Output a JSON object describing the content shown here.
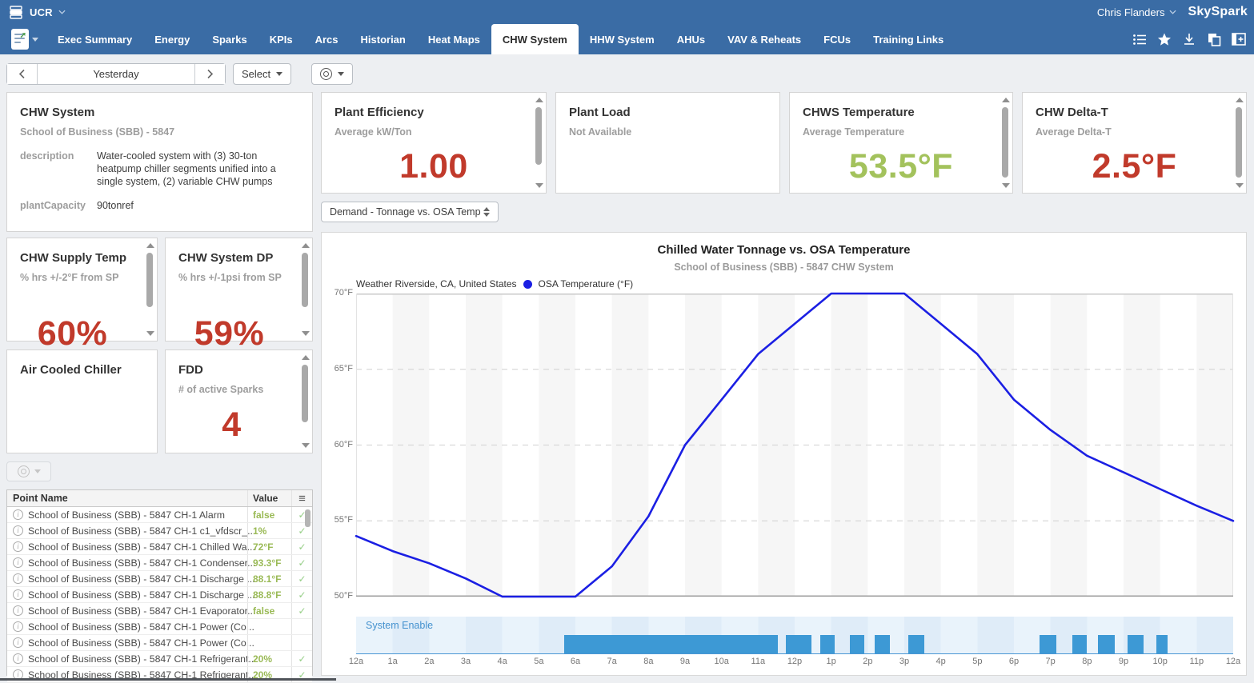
{
  "header": {
    "project": "UCR",
    "user": "Chris Flanders",
    "brand": "SkySpark"
  },
  "tabs": {
    "items": [
      "Exec Summary",
      "Energy",
      "Sparks",
      "KPIs",
      "Arcs",
      "Historian",
      "Heat Maps",
      "CHW System",
      "HHW System",
      "AHUs",
      "VAV & Reheats",
      "FCUs",
      "Training Links"
    ],
    "active": "CHW System"
  },
  "tabbar_icons": [
    "view-list-icon",
    "favorite-star-icon",
    "download-icon",
    "copy-icon",
    "new-window-icon"
  ],
  "toolbar": {
    "date_label": "Yesterday",
    "select_label": "Select"
  },
  "cards": {
    "chw_system": {
      "title": "CHW System",
      "subtitle": "School of Business (SBB) - 5847",
      "fields": [
        {
          "label": "description",
          "value": "Water-cooled system with (3) 30-ton heatpump chiller segments unified into a single system, (2) variable CHW pumps"
        },
        {
          "label": "plantCapacity",
          "value": "90tonref"
        }
      ]
    },
    "plant_efficiency": {
      "title": "Plant Efficiency",
      "subtitle": "Average kW/Ton",
      "value": "1.00"
    },
    "plant_load": {
      "title": "Plant Load",
      "subtitle": "Not Available"
    },
    "chws_temperature": {
      "title": "CHWS Temperature",
      "subtitle": "Average Temperature",
      "value": "53.5°F"
    },
    "chw_delta_t": {
      "title": "CHW Delta-T",
      "subtitle": "Average Delta-T",
      "value": "2.5°F"
    },
    "chw_supply_temp": {
      "title": "CHW Supply Temp",
      "subtitle": "% hrs +/-2°F from SP",
      "value": "60%"
    },
    "chw_system_dp": {
      "title": "CHW System DP",
      "subtitle": "% hrs +/-1psi from SP",
      "value": "59%"
    },
    "air_cooled_chiller": {
      "title": "Air Cooled Chiller"
    },
    "fdd": {
      "title": "FDD",
      "subtitle": "# of active Sparks",
      "value": "4"
    }
  },
  "chart_selector": {
    "label": "Demand - Tonnage vs. OSA Temp"
  },
  "points_table": {
    "columns": [
      "Point Name",
      "Value"
    ],
    "rows": [
      {
        "name": "School of Business (SBB) - 5847 CH-1 Alarm",
        "value": "false",
        "check": true
      },
      {
        "name": "School of Business (SBB) - 5847 CH-1 c1_vfdscr_...",
        "value": "1%",
        "check": true
      },
      {
        "name": "School of Business (SBB) - 5847 CH-1 Chilled Wa...",
        "value": "72°F",
        "check": true
      },
      {
        "name": "School of Business (SBB) - 5847 CH-1 Condenser...",
        "value": "93.3°F",
        "check": true
      },
      {
        "name": "School of Business (SBB) - 5847 CH-1 Discharge ...",
        "value": "88.1°F",
        "check": true
      },
      {
        "name": "School of Business (SBB) - 5847 CH-1 Discharge ...",
        "value": "88.8°F",
        "check": true
      },
      {
        "name": "School of Business (SBB) - 5847 CH-1 Evaporator...",
        "value": "false",
        "check": true
      },
      {
        "name": "School of Business (SBB) - 5847 CH-1 Power (Co...",
        "value": "",
        "check": false
      },
      {
        "name": "School of Business (SBB) - 5847 CH-1 Power (Co...",
        "value": "",
        "check": false
      },
      {
        "name": "School of Business (SBB) - 5847 CH-1 Refrigerant...",
        "value": "20%",
        "check": true
      },
      {
        "name": "School of Business (SBB) - 5847 CH-1 Refrigerant...",
        "value": "20%",
        "check": true
      }
    ]
  },
  "chart_data": {
    "type": "line",
    "title": "Chilled Water Tonnage vs. OSA Temperature",
    "subtitle": "School of Business (SBB) - 5847 CHW System",
    "legend": [
      {
        "label": "Weather Riverside, CA, United States",
        "marker": null
      },
      {
        "label": "OSA Temperature (°F)",
        "marker": "#1b1fe3"
      }
    ],
    "ylim": [
      50,
      70
    ],
    "yticks": [
      {
        "label": "70°F",
        "value": 70
      },
      {
        "label": "65°F",
        "value": 65
      },
      {
        "label": "60°F",
        "value": 60
      },
      {
        "label": "55°F",
        "value": 55
      },
      {
        "label": "50°F",
        "value": 50
      }
    ],
    "xlim_hours": [
      0,
      24
    ],
    "xticklabels": [
      "12a",
      "1a",
      "2a",
      "3a",
      "4a",
      "5a",
      "6a",
      "7a",
      "8a",
      "9a",
      "10a",
      "11a",
      "12p",
      "1p",
      "2p",
      "3p",
      "4p",
      "5p",
      "6p",
      "7p",
      "8p",
      "9p",
      "10p",
      "11p",
      "12a"
    ],
    "grid": "horizontal-dashed",
    "series": [
      {
        "name": "OSA Temperature (°F)",
        "color": "#1b1fe3",
        "points_hour_degF": [
          [
            0,
            54
          ],
          [
            1,
            53
          ],
          [
            2,
            52.2
          ],
          [
            3,
            51.2
          ],
          [
            4,
            50
          ],
          [
            5,
            50
          ],
          [
            6,
            50
          ],
          [
            7,
            52
          ],
          [
            8,
            55.3
          ],
          [
            9,
            60
          ],
          [
            10,
            63
          ],
          [
            11,
            66
          ],
          [
            12,
            68
          ],
          [
            13,
            70
          ],
          [
            14,
            70
          ],
          [
            15,
            70
          ],
          [
            16,
            68
          ],
          [
            17,
            66
          ],
          [
            18,
            63
          ],
          [
            19,
            61
          ],
          [
            20,
            59.3
          ],
          [
            21,
            58.2
          ],
          [
            22,
            57.1
          ],
          [
            23,
            56
          ],
          [
            24,
            55
          ]
        ]
      }
    ],
    "enable_track": {
      "label": "System Enable",
      "on_segments_hours": [
        [
          5.7,
          11.55
        ],
        [
          11.75,
          12.45
        ],
        [
          12.7,
          13.1
        ],
        [
          13.5,
          13.9
        ],
        [
          14.2,
          14.6
        ],
        [
          15.1,
          15.55
        ],
        [
          18.7,
          19.15
        ],
        [
          19.6,
          20.0
        ],
        [
          20.3,
          20.75
        ],
        [
          21.1,
          21.55
        ],
        [
          21.9,
          22.2
        ]
      ]
    }
  },
  "colors": {
    "header_blue": "#3a6ca5",
    "red": "#c13a2b",
    "green": "#a3c25c",
    "table_green": "#9aba56",
    "check_green": "#95ce85",
    "line_blue": "#1b1fe3",
    "enable_blue": "#3d99d5",
    "enable_label_blue": "#4592cf"
  }
}
